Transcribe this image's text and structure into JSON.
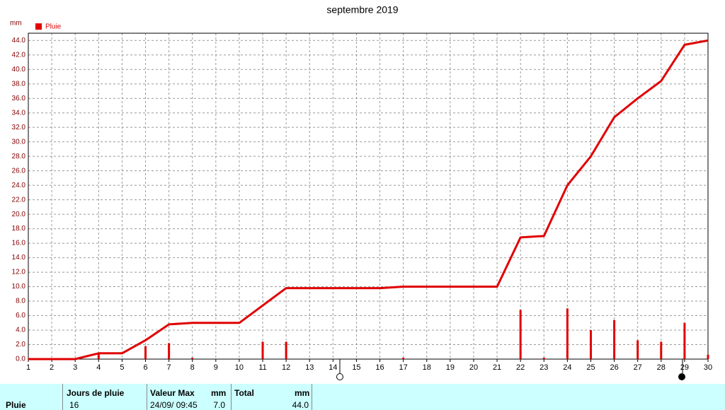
{
  "chart_data": {
    "type": "bar",
    "title": "septembre 2019",
    "y_unit": "mm",
    "x": [
      1,
      2,
      3,
      4,
      5,
      6,
      7,
      8,
      9,
      10,
      11,
      12,
      13,
      14,
      15,
      16,
      17,
      18,
      19,
      20,
      21,
      22,
      23,
      24,
      25,
      26,
      27,
      28,
      29,
      30
    ],
    "xlim": [
      1,
      30
    ],
    "xticks": [
      1,
      2,
      3,
      4,
      5,
      6,
      7,
      8,
      9,
      10,
      11,
      12,
      13,
      14,
      15,
      16,
      17,
      18,
      19,
      20,
      21,
      22,
      23,
      24,
      25,
      26,
      27,
      28,
      29,
      30
    ],
    "ylim": [
      0,
      45
    ],
    "yticks": [
      {
        "value": 0,
        "label": "0.0"
      },
      {
        "value": 2,
        "label": "2.0"
      },
      {
        "value": 4,
        "label": "4.0"
      },
      {
        "value": 6,
        "label": "6.0"
      },
      {
        "value": 8,
        "label": "8.0"
      },
      {
        "value": 10,
        "label": "10.0"
      },
      {
        "value": 12,
        "label": "12.0"
      },
      {
        "value": 14,
        "label": "14.0"
      },
      {
        "value": 16,
        "label": "16.0"
      },
      {
        "value": 18,
        "label": "18.0"
      },
      {
        "value": 20,
        "label": "20.0"
      },
      {
        "value": 22,
        "label": "22.0"
      },
      {
        "value": 24,
        "label": "24.0"
      },
      {
        "value": 26,
        "label": "26.0"
      },
      {
        "value": 28,
        "label": "28.0"
      },
      {
        "value": 30,
        "label": "30.0"
      },
      {
        "value": 32,
        "label": "32.0"
      },
      {
        "value": 34,
        "label": "34.0"
      },
      {
        "value": 36,
        "label": "36.0"
      },
      {
        "value": 38,
        "label": "38.0"
      },
      {
        "value": 40,
        "label": "40.0"
      },
      {
        "value": 42,
        "label": "42.0"
      },
      {
        "value": 44,
        "label": "44.0"
      }
    ],
    "grid": true,
    "series": [
      {
        "name": "Pluie",
        "color": "#e00000",
        "values": [
          0,
          0,
          0,
          0.8,
          0,
          1.8,
          2.2,
          0.2,
          0,
          0,
          2.4,
          2.4,
          0,
          0,
          0,
          0,
          0.2,
          0,
          0,
          0,
          0,
          6.8,
          0.2,
          7.0,
          4.0,
          5.4,
          2.6,
          2.4,
          5.0,
          0.6
        ],
        "cumulative": [
          0,
          0,
          0,
          0.8,
          0.8,
          2.6,
          4.8,
          5.0,
          5.0,
          5.0,
          7.4,
          9.8,
          9.8,
          9.8,
          9.8,
          9.8,
          10.0,
          10.0,
          10.0,
          10.0,
          10.0,
          16.8,
          17.0,
          24.0,
          28.0,
          33.4,
          36.0,
          38.4,
          43.4,
          44.0
        ]
      }
    ]
  },
  "table": {
    "header": [
      "Jours de pluie",
      "Valeur Max",
      "mm",
      "Total",
      "mm"
    ],
    "row": [
      "Pluie",
      "16",
      "24/09/ 09:45",
      "7.0",
      "44.0"
    ]
  }
}
